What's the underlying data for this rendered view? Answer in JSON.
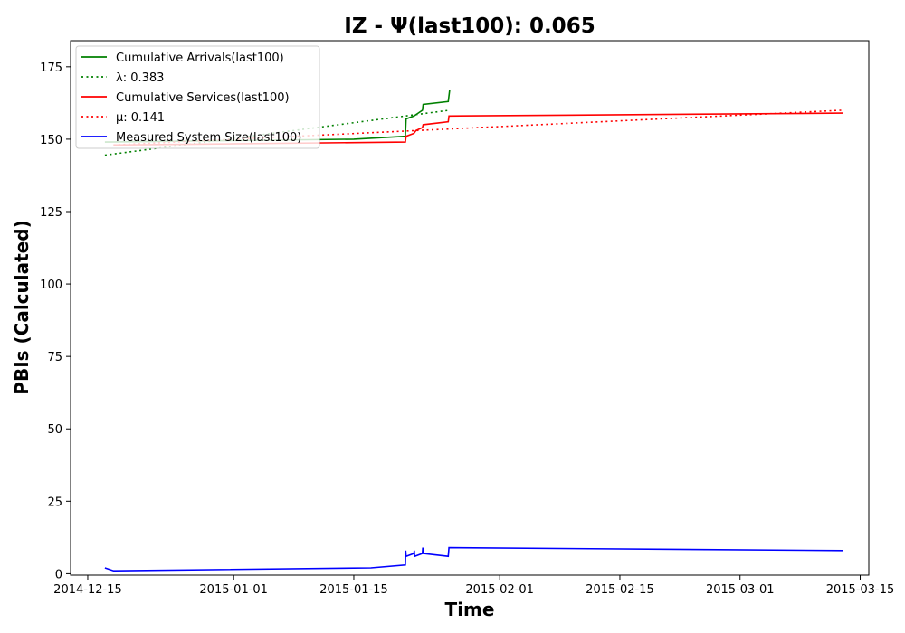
{
  "chart_data": {
    "type": "line",
    "title": "IZ -  Ψ(last100): 0.065",
    "xlabel": "Time",
    "ylabel": "PBIs (Calculated)",
    "xlim": [
      "2014-12-13",
      "2015-03-16"
    ],
    "ylim": [
      -0.5,
      184
    ],
    "x_ticks": [
      "2014-12-15",
      "2015-01-01",
      "2015-01-15",
      "2015-02-01",
      "2015-02-15",
      "2015-03-01",
      "2015-03-15"
    ],
    "y_ticks": [
      0,
      25,
      50,
      75,
      100,
      125,
      150,
      175
    ],
    "grid": false,
    "legend_position": "top-left",
    "series": [
      {
        "name": "Cumulative Arrivals(last100)",
        "color": "#008000",
        "style": "solid",
        "points": [
          [
            "2014-12-17T00:00",
            149
          ],
          [
            "2015-01-15T00:00",
            150
          ],
          [
            "2015-01-21T00:00",
            151
          ],
          [
            "2015-01-21T02:00",
            157
          ],
          [
            "2015-01-22T00:00",
            158
          ],
          [
            "2015-01-22T12:00",
            159
          ],
          [
            "2015-01-23T00:00",
            160
          ],
          [
            "2015-01-23T02:00",
            162
          ],
          [
            "2015-01-26T00:00",
            163
          ],
          [
            "2015-01-26T04:00",
            167
          ]
        ]
      },
      {
        "name": "λ: 0.383",
        "color": "#008000",
        "style": "dotted",
        "points": [
          [
            "2014-12-17T00:00",
            144.5
          ],
          [
            "2015-01-26T04:00",
            160
          ]
        ]
      },
      {
        "name": "Cumulative Services(last100)",
        "color": "#ff0000",
        "style": "solid",
        "points": [
          [
            "2014-12-18T00:00",
            148
          ],
          [
            "2015-01-21T00:00",
            149
          ],
          [
            "2015-01-21T02:00",
            151
          ],
          [
            "2015-01-22T00:00",
            152
          ],
          [
            "2015-01-22T06:00",
            153
          ],
          [
            "2015-01-23T00:00",
            154
          ],
          [
            "2015-01-23T02:00",
            155
          ],
          [
            "2015-01-26T00:00",
            156
          ],
          [
            "2015-01-26T02:00",
            158
          ],
          [
            "2015-03-13T00:00",
            159
          ]
        ]
      },
      {
        "name": "μ: 0.141",
        "color": "#ff0000",
        "style": "dotted",
        "points": [
          [
            "2014-12-18T00:00",
            148
          ],
          [
            "2015-03-13T00:00",
            160
          ]
        ]
      },
      {
        "name": "Measured System Size(last100)",
        "color": "#0000ff",
        "style": "solid",
        "points": [
          [
            "2014-12-17T00:00",
            2
          ],
          [
            "2014-12-18T00:00",
            1
          ],
          [
            "2015-01-17T00:00",
            2
          ],
          [
            "2015-01-21T00:00",
            3
          ],
          [
            "2015-01-21T01:00",
            8
          ],
          [
            "2015-01-21T02:00",
            6
          ],
          [
            "2015-01-22T00:00",
            7
          ],
          [
            "2015-01-22T01:00",
            8
          ],
          [
            "2015-01-22T02:00",
            6
          ],
          [
            "2015-01-23T00:00",
            7
          ],
          [
            "2015-01-23T01:00",
            9
          ],
          [
            "2015-01-23T02:00",
            7
          ],
          [
            "2015-01-26T00:00",
            6
          ],
          [
            "2015-01-26T02:00",
            9
          ],
          [
            "2015-03-13T00:00",
            8
          ]
        ]
      }
    ]
  }
}
